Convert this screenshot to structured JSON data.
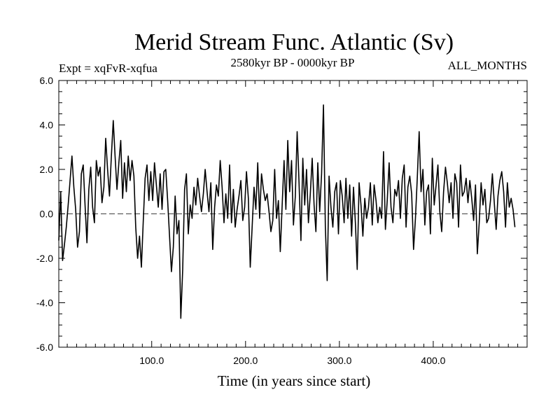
{
  "chart_data": {
    "type": "line",
    "title": "Merid Stream Func. Atlantic (Sv)",
    "subtitle_left": "Expt = xqFvR-xqfua",
    "subtitle_center": "2580kyr BP - 0000kyr BP",
    "subtitle_right": "ALL_MONTHS",
    "xlabel": "Time (in years since start)",
    "ylabel": "",
    "xlim": [
      1,
      500
    ],
    "ylim": [
      -6.0,
      6.0
    ],
    "x_ticks": [
      100.0,
      200.0,
      300.0,
      400.0
    ],
    "x_tick_labels": [
      "100.0",
      "200.0",
      "300.0",
      "400.0"
    ],
    "y_ticks": [
      -6.0,
      -4.0,
      -2.0,
      0.0,
      2.0,
      4.0,
      6.0
    ],
    "y_tick_labels": [
      "-6.0",
      "-4.0",
      "-2.0",
      "0.0",
      "2.0",
      "4.0",
      "6.0"
    ],
    "zero_line": "dashed",
    "series": [
      {
        "name": "Merid Stream Func. Atlantic",
        "color": "#000000",
        "x_start": 1,
        "x_step": 2,
        "values": [
          -1.2,
          1.0,
          -2.1,
          -1.4,
          -0.6,
          0.4,
          1.5,
          2.6,
          1.2,
          0.2,
          -1.5,
          -0.8,
          1.8,
          2.2,
          0.4,
          -1.3,
          1.1,
          2.1,
          0.3,
          -0.4,
          2.4,
          1.7,
          2.1,
          0.5,
          1.2,
          3.4,
          2.0,
          0.8,
          2.6,
          4.2,
          2.6,
          1.1,
          2.3,
          3.3,
          0.7,
          2.3,
          1.0,
          2.6,
          1.5,
          2.4,
          1.7,
          -0.6,
          -2.0,
          -1.0,
          -2.4,
          -0.3,
          1.6,
          2.2,
          0.6,
          1.9,
          0.6,
          2.3,
          1.3,
          0.3,
          1.8,
          0.2,
          1.9,
          2.0,
          0.6,
          -1.0,
          -2.6,
          -1.5,
          0.8,
          -0.9,
          -0.3,
          -4.7,
          -2.5,
          1.1,
          1.8,
          -0.9,
          0.4,
          -0.2,
          1.2,
          0.4,
          1.6,
          0.8,
          0.1,
          0.9,
          2.0,
          1.0,
          0.1,
          1.4,
          -1.6,
          0.3,
          1.3,
          0.8,
          2.4,
          1.2,
          -0.4,
          0.9,
          -0.2,
          2.2,
          -0.4,
          1.1,
          -0.6,
          0.2,
          0.8,
          1.5,
          -0.3,
          0.3,
          1.9,
          0.7,
          -2.4,
          -0.6,
          1.2,
          0.2,
          2.3,
          -0.2,
          1.8,
          1.1,
          0.6,
          0.9,
          0.1,
          -0.8,
          -0.3,
          2.0,
          -0.2,
          0.6,
          -1.7,
          0.4,
          2.4,
          0.2,
          3.3,
          1.0,
          2.4,
          -0.5,
          0.8,
          3.7,
          1.4,
          -1.2,
          2.5,
          0.4,
          2.0,
          -0.4,
          0.9,
          2.5,
          0.4,
          -0.8,
          2.3,
          0.1,
          1.8,
          4.9,
          -0.6,
          -3.0,
          1.7,
          0.3,
          -0.6,
          1.0,
          1.4,
          -0.9,
          1.5,
          0.8,
          -0.4,
          1.6,
          -0.2,
          1.3,
          -1.0,
          1.2,
          -0.4,
          -2.5,
          1.4,
          0.4,
          -1.0,
          0.7,
          -0.2,
          0.3,
          1.4,
          -0.5,
          1.3,
          0.6,
          -0.4,
          0.3,
          -0.2,
          2.8,
          -0.7,
          0.6,
          2.3,
          0.3,
          -0.4,
          1.1,
          0.8,
          1.5,
          -0.2,
          1.6,
          2.2,
          -0.6,
          1.2,
          1.7,
          0.9,
          -1.6,
          -0.2,
          1.6,
          3.7,
          1.0,
          2.0,
          -0.5,
          1.0,
          1.3,
          -0.9,
          2.5,
          0.4,
          1.3,
          2.2,
          0.1,
          -0.8,
          1.0,
          2.1,
          1.4,
          0.5,
          1.4,
          -0.2,
          1.8,
          1.4,
          -0.6,
          2.2,
          0.8,
          1.0,
          1.6,
          0.5,
          1.5,
          0.7,
          -0.3,
          1.3,
          -1.8,
          -0.4,
          1.4,
          0.4,
          1.1,
          -0.4,
          -0.2,
          0.6,
          1.8,
          0.5,
          -0.7,
          0.8,
          1.5,
          1.9,
          1.0,
          -0.6,
          1.4,
          0.3,
          0.7,
          0.2,
          -0.6
        ]
      }
    ]
  }
}
